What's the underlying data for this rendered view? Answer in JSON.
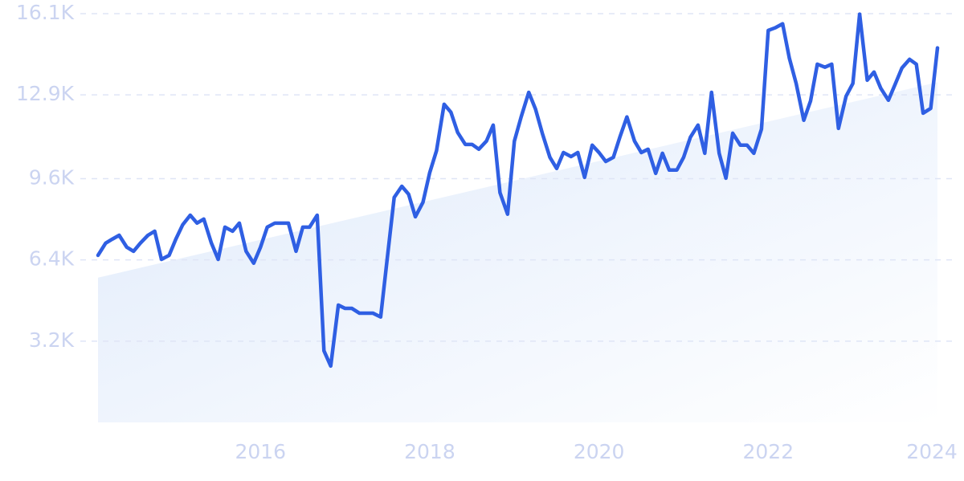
{
  "chart_data": {
    "type": "line",
    "x": [
      2014.08,
      2014.17,
      2014.25,
      2014.33,
      2014.42,
      2014.5,
      2014.58,
      2014.67,
      2014.75,
      2014.83,
      2014.92,
      2015,
      2015.08,
      2015.17,
      2015.25,
      2015.33,
      2015.42,
      2015.5,
      2015.58,
      2015.67,
      2015.75,
      2015.83,
      2015.92,
      2016,
      2016.08,
      2016.17,
      2016.25,
      2016.33,
      2016.42,
      2016.5,
      2016.58,
      2016.67,
      2016.75,
      2016.83,
      2016.92,
      2017,
      2017.08,
      2017.17,
      2017.25,
      2017.33,
      2017.42,
      2017.5,
      2017.58,
      2017.67,
      2017.75,
      2017.83,
      2017.92,
      2018,
      2018.08,
      2018.17,
      2018.25,
      2018.33,
      2018.42,
      2018.5,
      2018.58,
      2018.67,
      2018.75,
      2018.83,
      2018.92,
      2019,
      2019.08,
      2019.17,
      2019.25,
      2019.33,
      2019.42,
      2019.5,
      2019.58,
      2019.67,
      2019.75,
      2019.83,
      2019.92,
      2020,
      2020.08,
      2020.17,
      2020.25,
      2020.33,
      2020.42,
      2020.5,
      2020.58,
      2020.67,
      2020.75,
      2020.83,
      2020.92,
      2021,
      2021.08,
      2021.17,
      2021.25,
      2021.33,
      2021.42,
      2021.5,
      2021.58,
      2021.67,
      2021.75,
      2021.83,
      2021.92,
      2022,
      2022.08,
      2022.17,
      2022.25,
      2022.33,
      2022.42,
      2022.5,
      2022.58,
      2022.67,
      2022.75,
      2022.83,
      2022.92,
      2023,
      2023.08,
      2023.17,
      2023.25,
      2023.33,
      2023.42,
      2023.5,
      2023.58,
      2023.67,
      2023.75,
      2023.83,
      2023.92,
      2024
    ],
    "series": [
      {
        "color": "#2f5fe3",
        "values": [
          6580,
          7060,
          7220,
          7370,
          6900,
          6740,
          7060,
          7370,
          7530,
          6420,
          6580,
          7220,
          7780,
          8160,
          7850,
          8010,
          7060,
          6420,
          7690,
          7530,
          7850,
          6740,
          6270,
          6900,
          7690,
          7850,
          7850,
          7850,
          6740,
          7690,
          7690,
          8160,
          2820,
          2220,
          4620,
          4490,
          4490,
          4300,
          4300,
          4300,
          4150,
          6520,
          8860,
          9300,
          8990,
          8100,
          8670,
          9840,
          10700,
          12530,
          12220,
          11420,
          10950,
          10950,
          10760,
          11080,
          11710,
          9050,
          8200,
          11080,
          12030,
          13000,
          12340,
          11390,
          10440,
          10000,
          10630,
          10470,
          10630,
          9650,
          10920,
          10630,
          10280,
          10440,
          11270,
          12030,
          11080,
          10630,
          10760,
          9810,
          10600,
          9940,
          9940,
          10440,
          11230,
          11710,
          10600,
          13000,
          10600,
          9620,
          11390,
          10920,
          10920,
          10600,
          11550,
          15440,
          15540,
          15700,
          14340,
          13350,
          11900,
          12660,
          14110,
          13990,
          14110,
          11580,
          12850,
          13350,
          16080,
          13480,
          13800,
          13160,
          12690,
          13320,
          13960,
          14300,
          14110,
          12180,
          12370,
          14750
        ]
      }
    ],
    "trend": {
      "x": [
        2014.08,
        2024
      ],
      "values": [
        5700,
        13400
      ]
    },
    "xlim": [
      2014.08,
      2024
    ],
    "xticks": [
      2016,
      2018,
      2020,
      2022,
      2024
    ],
    "ylim": [
      0,
      16100
    ],
    "yticks": [
      {
        "value": 3200,
        "label": "3.2K"
      },
      {
        "value": 6400,
        "label": "6.4K"
      },
      {
        "value": 9600,
        "label": "9.6K"
      },
      {
        "value": 12900,
        "label": "12.9K"
      },
      {
        "value": 16100,
        "label": "16.1K"
      }
    ],
    "grid": true
  }
}
